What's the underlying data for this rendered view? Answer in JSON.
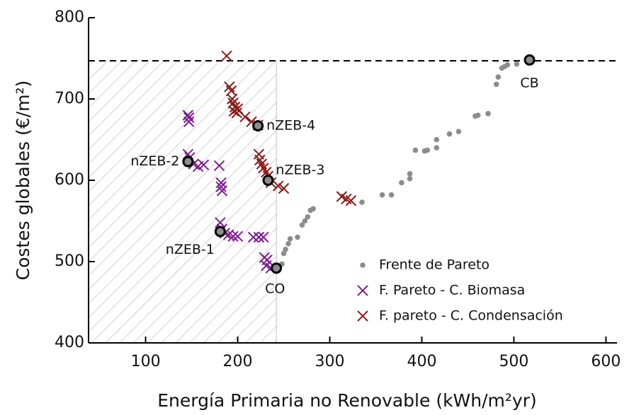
{
  "chart_data": {
    "type": "scatter",
    "xlabel": "Energía Primaria no Renovable (kWh/m²yr)",
    "ylabel": "Costes globales (€/m²)",
    "xlim": [
      38,
      612
    ],
    "ylim": [
      400,
      800
    ],
    "xticks": [
      100,
      200,
      300,
      400,
      500,
      600
    ],
    "yticks": [
      400,
      500,
      600,
      700,
      800
    ],
    "hline": 747,
    "hatch_xmax": 242,
    "legend": "lower right",
    "series": [
      {
        "name": "Frente de Pareto",
        "color": "#8c8c8c",
        "marker": "circle",
        "x": [
          245,
          248,
          250,
          252,
          255,
          257,
          265,
          270,
          273,
          276,
          279,
          282,
          335,
          357,
          367,
          378,
          387,
          387,
          393,
          403,
          406,
          416,
          416,
          430,
          440,
          458,
          461,
          472,
          481,
          483,
          487,
          490,
          493,
          503
        ],
        "y": [
          493,
          497,
          510,
          515,
          522,
          528,
          530,
          545,
          550,
          555,
          563,
          565,
          573,
          582,
          582,
          597,
          602,
          608,
          637,
          636,
          637,
          640,
          650,
          657,
          660,
          679,
          680,
          682,
          718,
          727,
          738,
          740,
          742,
          743
        ]
      },
      {
        "name": "F. Pareto - C. Biomasa",
        "color": "#7b1f8f",
        "marker": "x",
        "x": [
          146,
          147,
          147,
          146,
          148,
          152,
          157,
          163,
          180,
          182,
          182,
          183,
          181,
          183,
          186,
          190,
          195,
          200,
          217,
          223,
          228,
          229,
          232,
          231,
          236
        ],
        "y": [
          680,
          677,
          672,
          632,
          628,
          620,
          617,
          619,
          618,
          597,
          592,
          587,
          548,
          540,
          535,
          533,
          531,
          531,
          530,
          530,
          530,
          505,
          502,
          495,
          492
        ]
      },
      {
        "name": "F. pareto - C. Condensación",
        "color": "#8b1a1a",
        "marker": "x",
        "x": [
          188,
          191,
          193,
          194,
          195,
          197,
          196,
          199,
          200,
          208,
          215,
          222,
          223,
          224,
          226,
          228,
          231,
          233,
          236,
          244,
          250,
          313,
          318,
          323
        ],
        "y": [
          753,
          715,
          710,
          700,
          695,
          690,
          685,
          683,
          688,
          678,
          672,
          668,
          632,
          625,
          620,
          615,
          610,
          605,
          597,
          593,
          590,
          580,
          577,
          575
        ]
      }
    ],
    "highlights": [
      {
        "label": "CB",
        "x": 517,
        "y": 748
      },
      {
        "label": "nZEB-4",
        "x": 222,
        "y": 667
      },
      {
        "label": "nZEB-3",
        "x": 233,
        "y": 600
      },
      {
        "label": "nZEB-2",
        "x": 146,
        "y": 623
      },
      {
        "label": "nZEB-1",
        "x": 181,
        "y": 537
      },
      {
        "label": "CO",
        "x": 242,
        "y": 492
      }
    ]
  }
}
